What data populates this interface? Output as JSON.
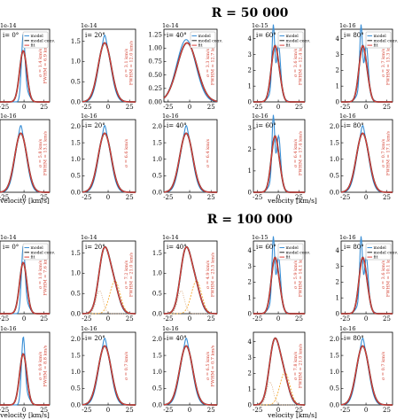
{
  "colors": {
    "model": "#3a8fd6",
    "model_conv": "#222222",
    "fit": "#e0403a",
    "comp1": "#f4a21e",
    "comp2": "#d9a67a",
    "annotation": "#d23b2c"
  },
  "legend_labels": {
    "model": "model",
    "model_conv": "model conv.",
    "fit": "fit"
  },
  "xlabel": "velocity [km/s]",
  "chart_data": [
    {
      "type": "line",
      "title": "R = 50 000",
      "xlabel": "velocity [km/s]",
      "x_ticks": [
        "-25",
        "0",
        "25"
      ],
      "panels": [
        {
          "row": 0,
          "col": 0,
          "incl": "i= 0°",
          "exp": "1e-14",
          "yticks": [],
          "sigma": "σ = 1.4 km/s",
          "fwhm": "FWHM = 6.9 km/s",
          "peak": 0.95,
          "shape": "narrow",
          "legend": true
        },
        {
          "row": 0,
          "col": 1,
          "incl": "i= 20°",
          "exp": "1e-14",
          "yticks": [
            "0.0",
            "0.5",
            "1.0",
            "1.5"
          ],
          "ymax": 1.8,
          "sigma": "σ = 3.1 km/s",
          "fwhm": "FWHM = 12.0 km/s",
          "peak": 1.55,
          "shape": "broad",
          "legend": false
        },
        {
          "row": 0,
          "col": 2,
          "incl": "i= 40°",
          "exp": "1e-14",
          "yticks": [
            "0.00",
            "0.25",
            "0.50",
            "0.75",
            "1.00",
            "1.25"
          ],
          "ymax": 1.35,
          "sigma": "σ = 3.3 km/s",
          "fwhm": "FWHM = 12.7 km/s",
          "peak": 1.1,
          "shape": "wide",
          "legend": true
        },
        {
          "row": 0,
          "col": 3,
          "incl": "i= 60°",
          "exp": "1e-15",
          "yticks": [
            "0",
            "1",
            "2",
            "3",
            "4"
          ],
          "ymax": 4.6,
          "sigma": "σ = 3.6 km/s",
          "fwhm": "FWHM = 12.4 km/s",
          "peak": 3.3,
          "shape": "double",
          "legend": true
        },
        {
          "row": 0,
          "col": 4,
          "incl": "i= 80°",
          "exp": "1e-16",
          "yticks": [
            "0",
            "1",
            "2",
            "3",
            "4"
          ],
          "ymax": 4.6,
          "sigma": "σ = 3.7 km/s",
          "fwhm": "FWHM = 13.3 km/s",
          "peak": 3.6,
          "shape": "double",
          "legend": true
        },
        {
          "row": 1,
          "col": 0,
          "incl": "",
          "exp": "1e-16",
          "yticks": [],
          "sigma": "σ = 5.8 km/s",
          "fwhm": "FWHM = 13.1 km/s",
          "peak": 0.85,
          "shape": "broad",
          "legend": false
        },
        {
          "row": 1,
          "col": 1,
          "incl": "i= 20°",
          "exp": "1e-16",
          "yticks": [
            "0.0",
            "0.5",
            "1.0",
            "1.5",
            "2.0"
          ],
          "ymax": 2.2,
          "sigma": "σ = 6.6 km/s",
          "fwhm": "",
          "peak": 1.8,
          "shape": "broad",
          "legend": false
        },
        {
          "row": 1,
          "col": 2,
          "incl": "i= 40°",
          "exp": "1e-16",
          "yticks": [
            "0.0",
            "0.5",
            "1.0",
            "1.5",
            "2.0"
          ],
          "ymax": 2.2,
          "sigma": "σ = 6.4 km/s",
          "fwhm": "",
          "peak": 1.9,
          "shape": "broad",
          "legend": false
        },
        {
          "row": 1,
          "col": 3,
          "incl": "i= 60°",
          "exp": "1e-16",
          "yticks": [
            "0",
            "1",
            "2",
            "3"
          ],
          "ymax": 3.4,
          "sigma": "σ = 6.4 km/s",
          "fwhm": "FWHM = 17.4 km/s",
          "peak": 2.6,
          "shape": "double",
          "legend": false
        },
        {
          "row": 1,
          "col": 4,
          "incl": "i= 80°",
          "exp": "1e-16",
          "yticks": [
            "0.0",
            "0.5",
            "1.0",
            "1.5",
            "2.0"
          ],
          "ymax": 2.2,
          "sigma": "σ = 0.7 km/s",
          "fwhm": "FWHM = 17.1 km/s",
          "peak": 1.85,
          "shape": "broad",
          "legend": false
        }
      ]
    },
    {
      "type": "line",
      "title": "R = 100 000",
      "xlabel": "velocity [km/s]",
      "x_ticks": [
        "-25",
        "0",
        "25"
      ],
      "panels": [
        {
          "row": 0,
          "col": 0,
          "incl": "i= 0°",
          "exp": "1e-14",
          "yticks": [],
          "sigma": "σ = 1.0 km/s",
          "fwhm": "FWHM = 7.6 km/s",
          "peak": 0.95,
          "shape": "narrow",
          "legend": true
        },
        {
          "row": 0,
          "col": 1,
          "incl": "i= 20°",
          "exp": "1e-14",
          "yticks": [
            "0.0",
            "0.5",
            "1.0",
            "1.5"
          ],
          "ymax": 1.8,
          "sigma": "σ = 7.2 km/s",
          "fwhm": "FWHM = 21.0 km/s",
          "peak": 1.6,
          "shape": "asym",
          "legend": false
        },
        {
          "row": 0,
          "col": 2,
          "incl": "i= 40°",
          "exp": "1e-14",
          "yticks": [
            "0.0",
            "0.5",
            "1.0",
            "1.5"
          ],
          "ymax": 1.8,
          "sigma": "σ = 4.9 km/s",
          "fwhm": "FWHM = 23.5 km/s",
          "peak": 1.45,
          "shape": "asym",
          "legend": false
        },
        {
          "row": 0,
          "col": 3,
          "incl": "i= 60°",
          "exp": "1e-15",
          "yticks": [
            "0",
            "1",
            "2",
            "3",
            "4"
          ],
          "ymax": 4.6,
          "sigma": "σ = 5.9 km/s",
          "fwhm": "FWHM = 14.1 km/s",
          "peak": 3.3,
          "shape": "double",
          "legend": true
        },
        {
          "row": 0,
          "col": 4,
          "incl": "i= 80°",
          "exp": "1e-16",
          "yticks": [
            "0",
            "1",
            "2",
            "3",
            "4"
          ],
          "ymax": 4.6,
          "sigma": "σ = 3.6 km/s",
          "fwhm": "FWHM = 10.1 km/s",
          "peak": 3.8,
          "shape": "double",
          "legend": true
        },
        {
          "row": 1,
          "col": 0,
          "incl": "",
          "exp": "1e-16",
          "yticks": [],
          "sigma": "σ = 0.9 km/s",
          "fwhm": "FWHM = 8.8 km/s",
          "peak": 0.9,
          "shape": "narrow",
          "legend": false
        },
        {
          "row": 1,
          "col": 1,
          "incl": "i= 20°",
          "exp": "1e-16",
          "yticks": [
            "0.0",
            "0.5",
            "1.0",
            "1.5",
            "2.0"
          ],
          "ymax": 2.2,
          "sigma": "σ = 0.7 km/s",
          "fwhm": "",
          "peak": 1.8,
          "shape": "broad",
          "legend": false
        },
        {
          "row": 1,
          "col": 2,
          "incl": "i= 40°",
          "exp": "1e-16",
          "yticks": [
            "0.0",
            "0.5",
            "1.0",
            "1.5",
            "2.0"
          ],
          "ymax": 2.2,
          "sigma": "σ = 6.5 km/s",
          "fwhm": "FWHM = 0.7 km/s",
          "peak": 1.85,
          "shape": "broad",
          "legend": false
        },
        {
          "row": 1,
          "col": 3,
          "incl": "",
          "exp": "",
          "yticks": [
            "0",
            "1",
            "2",
            "3",
            "4"
          ],
          "ymax": 4.6,
          "sigma": "σ = 7.8 km/s",
          "fwhm": "FWHM = 21.0 km/s",
          "peak": 3.4,
          "shape": "asym",
          "legend": false
        },
        {
          "row": 1,
          "col": 4,
          "incl": "i= 80°",
          "exp": "1e-16",
          "yticks": [
            "0.0",
            "0.5",
            "1.0",
            "1.5",
            "2.0"
          ],
          "ymax": 2.2,
          "sigma": "σ = 0.7 km/s",
          "fwhm": "",
          "peak": 1.85,
          "shape": "broad",
          "legend": false
        }
      ]
    }
  ]
}
